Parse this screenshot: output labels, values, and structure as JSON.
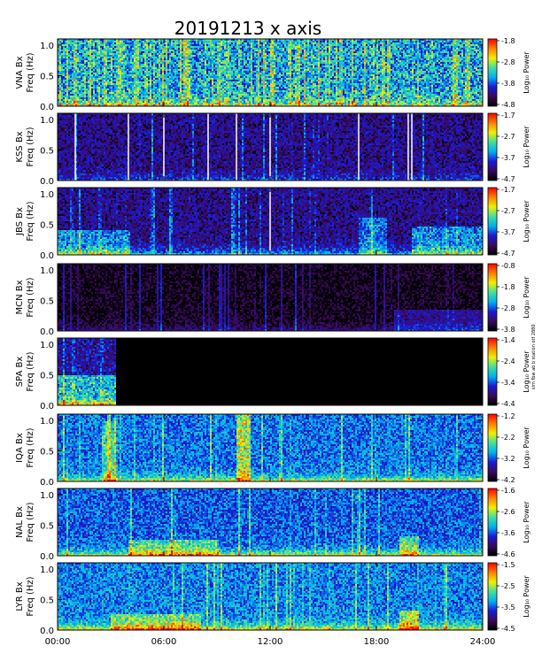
{
  "title": "20191213 x axis",
  "side_note": "sim fbw ab b station otf 2880",
  "colorbar_label": "Log₁₀ Power",
  "ylabel_suffix": "Freq (Hz)",
  "chart_data": {
    "type": "heatmap",
    "title": "20191213 x axis",
    "x_ticks": [
      "00:00",
      "06:00",
      "12:00",
      "18:00",
      "24:00"
    ],
    "xlim": [
      "00:00",
      "24:00"
    ],
    "y_ticks": [
      "0.0",
      "0.5",
      "1.0"
    ],
    "ylim": [
      0,
      1.1
    ],
    "colorbar": {
      "label": "Log₁₀ Power",
      "colors": [
        "#000000",
        "#3a0a5a",
        "#1a1ad8",
        "#00b0f0",
        "#40e0a0",
        "#f0f000",
        "#ff8000",
        "#ff0000"
      ]
    },
    "panels": [
      {
        "station": "VNA Bx",
        "ylabel": "Freq (Hz)",
        "colorbar_ticks": [
          "-1.8",
          "-2.8",
          "-3.8",
          "-4.8"
        ],
        "cb_range": [
          -4.8,
          -1.8
        ],
        "base": 0.45,
        "noise": 0.22,
        "vstreak": 0.5,
        "bright_base": 0.25,
        "dark_after": null,
        "dark_level": 0.0,
        "white_lines": [],
        "events": []
      },
      {
        "station": "KSS Bx",
        "ylabel": "Freq (Hz)",
        "colorbar_ticks": [
          "-1.7",
          "-2.7",
          "-3.7",
          "-4.7"
        ],
        "cb_range": [
          -4.7,
          -1.7
        ],
        "base": 0.16,
        "noise": 0.14,
        "vstreak": 0.08,
        "bright_base": 0.15,
        "dark_after": null,
        "dark_level": 0.0,
        "white_lines": [
          1.0,
          4.0,
          6.0,
          8.5,
          10.1,
          12.0,
          17.0,
          19.8,
          20.0
        ],
        "events": []
      },
      {
        "station": "JBS Bx",
        "ylabel": "Freq (Hz)",
        "colorbar_ticks": [
          "-1.7",
          "-2.7",
          "-3.7",
          "-4.7"
        ],
        "cb_range": [
          -4.7,
          -1.7
        ],
        "base": 0.16,
        "noise": 0.14,
        "vstreak": 0.1,
        "bright_base": 0.3,
        "dark_after": null,
        "dark_level": 0.0,
        "white_lines": [
          12.0
        ],
        "events": [
          [
            0.0,
            4.0,
            0.4,
            0.25
          ],
          [
            17.0,
            18.5,
            0.6,
            0.2
          ],
          [
            20.0,
            24.0,
            0.45,
            0.25
          ]
        ]
      },
      {
        "station": "MCN Bx",
        "ylabel": "Freq (Hz)",
        "colorbar_ticks": [
          "-0.8",
          "-1.8",
          "-2.8",
          "-3.8"
        ],
        "cb_range": [
          -3.8,
          -0.8
        ],
        "base": 0.03,
        "noise": 0.08,
        "vstreak": 0.1,
        "bright_base": 0.12,
        "dark_after": null,
        "dark_level": 0.0,
        "white_lines": [],
        "events": [
          [
            19.0,
            24.0,
            0.35,
            0.15
          ]
        ]
      },
      {
        "station": "SPA Bx",
        "ylabel": "Freq (Hz)",
        "colorbar_ticks": [
          "-1.4",
          "-2.4",
          "-3.4",
          "-4.4"
        ],
        "cb_range": [
          -4.4,
          -1.4
        ],
        "base": 0.2,
        "noise": 0.15,
        "vstreak": 0.15,
        "bright_base": 0.3,
        "dark_after": 3.2,
        "dark_level": 0.0,
        "white_lines": [],
        "events": [
          [
            0.0,
            3.2,
            0.5,
            0.3
          ]
        ]
      },
      {
        "station": "IQA Bx",
        "ylabel": "Freq (Hz)",
        "colorbar_ticks": [
          "-1.2",
          "-2.2",
          "-3.2",
          "-4.2"
        ],
        "cb_range": [
          -4.2,
          -1.2
        ],
        "base": 0.38,
        "noise": 0.14,
        "vstreak": 0.15,
        "bright_base": 0.3,
        "dark_after": null,
        "dark_level": 0.0,
        "white_lines": [],
        "events": [
          [
            10.1,
            10.8,
            1.1,
            0.3
          ],
          [
            2.5,
            3.3,
            1.0,
            0.18
          ]
        ]
      },
      {
        "station": "NAL Bx",
        "ylabel": "Freq (Hz)",
        "colorbar_ticks": [
          "-1.6",
          "-2.6",
          "-3.6",
          "-4.6"
        ],
        "cb_range": [
          -4.6,
          -1.6
        ],
        "base": 0.35,
        "noise": 0.14,
        "vstreak": 0.1,
        "bright_base": 0.35,
        "dark_after": null,
        "dark_level": 0.0,
        "white_lines": [],
        "events": [
          [
            4.0,
            9.0,
            0.25,
            0.2
          ],
          [
            19.3,
            20.3,
            0.3,
            0.25
          ]
        ]
      },
      {
        "station": "LYR Bx",
        "ylabel": "Freq (Hz)",
        "colorbar_ticks": [
          "-1.5",
          "-2.5",
          "-3.5",
          "-4.5"
        ],
        "cb_range": [
          -4.5,
          -1.5
        ],
        "base": 0.4,
        "noise": 0.14,
        "vstreak": 0.12,
        "bright_base": 0.35,
        "dark_after": null,
        "dark_level": 0.0,
        "white_lines": [],
        "events": [
          [
            3.0,
            8.0,
            0.25,
            0.2
          ],
          [
            19.3,
            20.3,
            0.3,
            0.25
          ]
        ]
      }
    ]
  }
}
